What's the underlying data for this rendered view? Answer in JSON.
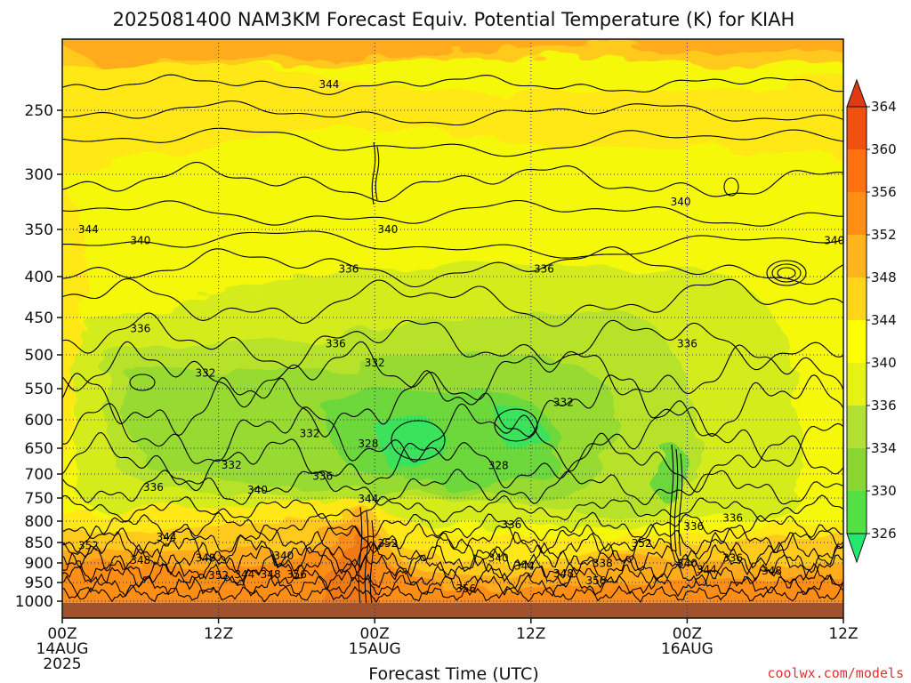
{
  "chart_data": {
    "type": "heatmap",
    "title": "2025081400 NAM3KM Forecast Equiv. Potential Temperature (K) for KIAH",
    "xlabel": "Forecast Time (UTC)",
    "ylabel": "",
    "credit": "coolwx.com/models",
    "x_ticks": [
      {
        "hour": 0,
        "lines": [
          "00Z",
          "14AUG",
          "2025"
        ]
      },
      {
        "hour": 12,
        "lines": [
          "12Z"
        ]
      },
      {
        "hour": 24,
        "lines": [
          "00Z",
          "15AUG"
        ]
      },
      {
        "hour": 36,
        "lines": [
          "12Z"
        ]
      },
      {
        "hour": 48,
        "lines": [
          "00Z",
          "16AUG"
        ]
      },
      {
        "hour": 60,
        "lines": [
          "12Z"
        ]
      }
    ],
    "xlim": [
      0,
      60
    ],
    "y_ticks": [
      250,
      300,
      350,
      400,
      450,
      500,
      550,
      600,
      650,
      700,
      750,
      800,
      850,
      900,
      950,
      1000
    ],
    "ylim_pressure_hPa": [
      1010,
      200
    ],
    "colorbar": {
      "levels": [
        326,
        330,
        334,
        336,
        340,
        344,
        348,
        352,
        356,
        360,
        364
      ],
      "colors": [
        "#22e86e",
        "#52e044",
        "#8ad632",
        "#b2e034",
        "#e6f214",
        "#ffff00",
        "#ffd41a",
        "#ffb41e",
        "#ff8e14",
        "#ff7010",
        "#f05010",
        "#e03a14"
      ]
    },
    "grid": true,
    "contour_labels": [
      {
        "hour": 20.5,
        "p": 232,
        "text": "344"
      },
      {
        "hour": 47.5,
        "p": 325,
        "text": "340"
      },
      {
        "hour": 2.0,
        "p": 350,
        "text": "344"
      },
      {
        "hour": 25.0,
        "p": 350,
        "text": "340"
      },
      {
        "hour": 59.3,
        "p": 362,
        "text": "340"
      },
      {
        "hour": 6.0,
        "p": 362,
        "text": "340"
      },
      {
        "hour": 22.0,
        "p": 392,
        "text": "336"
      },
      {
        "hour": 37.0,
        "p": 392,
        "text": "336"
      },
      {
        "hour": 6.0,
        "p": 465,
        "text": "336"
      },
      {
        "hour": 21.0,
        "p": 485,
        "text": "336"
      },
      {
        "hour": 48.0,
        "p": 485,
        "text": "336"
      },
      {
        "hour": 24.0,
        "p": 512,
        "text": "332"
      },
      {
        "hour": 11.0,
        "p": 527,
        "text": "332"
      },
      {
        "hour": 38.5,
        "p": 572,
        "text": "332"
      },
      {
        "hour": 19.0,
        "p": 624,
        "text": "332"
      },
      {
        "hour": 23.5,
        "p": 642,
        "text": "328"
      },
      {
        "hour": 33.5,
        "p": 684,
        "text": "328"
      },
      {
        "hour": 13.0,
        "p": 683,
        "text": "332"
      },
      {
        "hour": 20.0,
        "p": 705,
        "text": "336"
      },
      {
        "hour": 7.0,
        "p": 728,
        "text": "336"
      },
      {
        "hour": 15.0,
        "p": 733,
        "text": "340"
      },
      {
        "hour": 23.5,
        "p": 752,
        "text": "344"
      },
      {
        "hour": 34.5,
        "p": 808,
        "text": "336"
      },
      {
        "hour": 51.5,
        "p": 793,
        "text": "336"
      },
      {
        "hour": 48.5,
        "p": 812,
        "text": "336"
      },
      {
        "hour": 8.0,
        "p": 838,
        "text": "344"
      },
      {
        "hour": 2.0,
        "p": 858,
        "text": "352"
      },
      {
        "hour": 25.0,
        "p": 852,
        "text": "352"
      },
      {
        "hour": 44.5,
        "p": 852,
        "text": "352"
      },
      {
        "hour": 17.0,
        "p": 883,
        "text": "340"
      },
      {
        "hour": 11.0,
        "p": 888,
        "text": "348"
      },
      {
        "hour": 6.0,
        "p": 893,
        "text": "348"
      },
      {
        "hour": 33.5,
        "p": 888,
        "text": "340"
      },
      {
        "hour": 51.5,
        "p": 888,
        "text": "336"
      },
      {
        "hour": 41.5,
        "p": 901,
        "text": "338"
      },
      {
        "hour": 48.0,
        "p": 901,
        "text": "340"
      },
      {
        "hour": 35.5,
        "p": 908,
        "text": "344"
      },
      {
        "hour": 38.5,
        "p": 927,
        "text": "348"
      },
      {
        "hour": 49.5,
        "p": 917,
        "text": "344"
      },
      {
        "hour": 54.5,
        "p": 921,
        "text": "348"
      },
      {
        "hour": 12.0,
        "p": 932,
        "text": "352"
      },
      {
        "hour": 14.0,
        "p": 930,
        "text": "344"
      },
      {
        "hour": 16.0,
        "p": 930,
        "text": "348"
      },
      {
        "hour": 18.0,
        "p": 930,
        "text": "356"
      },
      {
        "hour": 41.0,
        "p": 945,
        "text": "356"
      },
      {
        "hour": 31.0,
        "p": 967,
        "text": "356"
      }
    ]
  }
}
